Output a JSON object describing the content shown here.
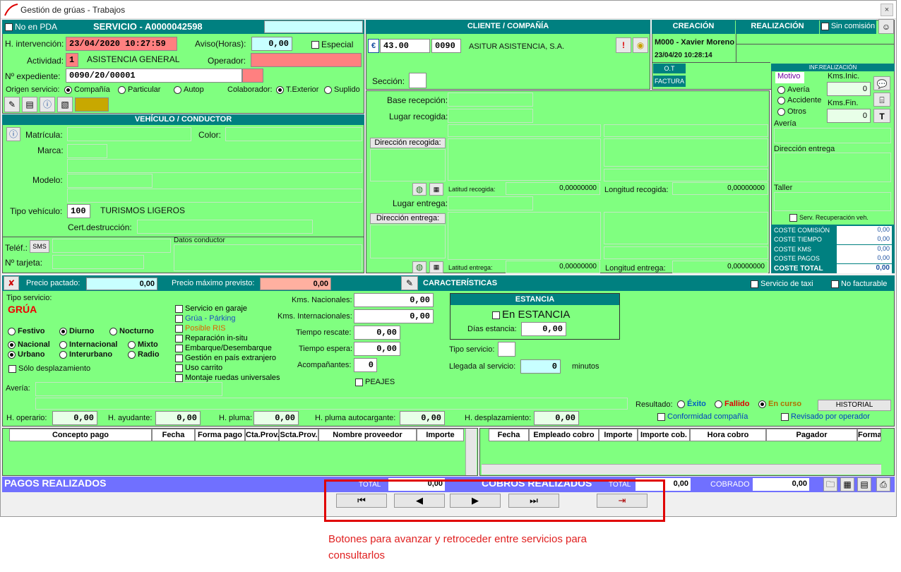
{
  "window": {
    "title": "Gestión de grúas - Trabajos",
    "close": "×"
  },
  "servicio": {
    "no_pda": "No en PDA",
    "title": "SERVICIO - A0000042598",
    "h_intervencion_label": "H. intervención:",
    "h_intervencion": "23/04/2020 10:27:59",
    "aviso_label": "Aviso(Horas):",
    "aviso": "0,00",
    "especial": "Especial",
    "actividad_label": "Actividad:",
    "actividad_code": "1",
    "actividad": "ASISTENCIA GENERAL",
    "operador_label": "Operador:",
    "expediente_label": "Nº expediente:",
    "expediente": "0090/20/00001",
    "origen_label": "Origen servicio:",
    "origen_opts": [
      "Compañía",
      "Particular",
      "Autop"
    ],
    "colaborador_label": "Colaborador:",
    "colab_opts": [
      "T.Exterior",
      "Suplido"
    ]
  },
  "vehiculo": {
    "title": "VEHÍCULO / CONDUCTOR",
    "matricula": "Matrícula:",
    "color": "Color:",
    "marca": "Marca:",
    "modelo": "Modelo:",
    "tipo_label": "Tipo vehículo:",
    "tipo_code": "100",
    "tipo": "TURISMOS LIGEROS",
    "cert": "Cert.destrucción:",
    "telef": "Teléf.:",
    "sms": "SMS",
    "tarjeta": "Nº tarjeta:",
    "datos": "Datos conductor"
  },
  "cliente": {
    "title": "CLIENTE / COMPAÑÍA",
    "euro": "€",
    "importe": "43.00",
    "code": "0090",
    "nombre": "ASITUR ASISTENCIA, S.A.",
    "seccion": "Sección:",
    "base": "Base recepción:",
    "lugar_recogida": "Lugar recogida:",
    "dir_recogida": "Dirección recogida:",
    "lat_recogida_label": "Latitud recogida:",
    "lat_recogida": "0,00000000",
    "lon_recogida_label": "Longitud recogida:",
    "lon_recogida": "0,00000000",
    "lugar_entrega": "Lugar entrega:",
    "dir_entrega": "Dirección entrega:",
    "lat_entrega_label": "Latitud entrega:",
    "lat_entrega": "0,00000000",
    "lon_entrega_label": "Longitud entrega:",
    "lon_entrega": "0,00000000"
  },
  "creacion": {
    "title": "CREACIÓN",
    "realizacion": "REALIZACIÓN",
    "sin_comision": "Sin comisión",
    "user": "M000 - Xavier Moreno",
    "date": "23/04/20 10:28:14",
    "ot": "O.T",
    "factura": "FACTURA"
  },
  "inf": {
    "title": "INF.REALIZACIÓN",
    "motivo": "Motivo",
    "motivos": [
      "Avería",
      "Accidente",
      "Otros"
    ],
    "kms_ini": "Kms.Inic.",
    "kms_ini_val": "0",
    "kms_fin": "Kms.Fin.",
    "kms_fin_val": "0",
    "t": "T",
    "averia": "Avería",
    "dir_entrega": "Dirección entrega",
    "taller": "Taller",
    "serv_rec": "Serv. Recuperación veh.",
    "costes": [
      {
        "l": "COSTE COMISIÓN",
        "v": "0,00"
      },
      {
        "l": "COSTE TIEMPO",
        "v": "0,00"
      },
      {
        "l": "COSTE KMS",
        "v": "0,00"
      },
      {
        "l": "COSTE PAGOS",
        "v": "0,00"
      }
    ],
    "total_l": "COSTE TOTAL",
    "total_v": "0,00"
  },
  "carac": {
    "precio_pactado": "Precio pactado:",
    "precio_pactado_v": "0,00",
    "precio_max": "Precio máximo previsto:",
    "precio_max_v": "0,00",
    "title": "CARACTERÍSTICAS",
    "taxi": "Servicio de taxi",
    "no_fact": "No facturable",
    "tipo_label": "Tipo servicio:",
    "tipo": "GRÚA",
    "r1": [
      "Festivo",
      "Diurno",
      "Nocturno"
    ],
    "r2": [
      "Nacional",
      "Internacional",
      "Mixto"
    ],
    "r3": [
      "Urbano",
      "Interurbano",
      "Radio"
    ],
    "solo": "Sólo desplazamiento",
    "checks": [
      "Servicio en garaje",
      "Grúa - Párking",
      "Posible RIS",
      "Reparación in-situ",
      "Embarque/Desembarque",
      "Gestión en país extranjero",
      "Uso carrito",
      "Montaje ruedas universales"
    ],
    "kms_nac": "Kms. Nacionales:",
    "kms_int": "Kms. Internacionales:",
    "t_rescate": "Tiempo rescate:",
    "t_espera": "Tiempo espera:",
    "acomp": "Acompañantes:",
    "acomp_v": "0",
    "peajes": "PEAJES",
    "zero": "0,00",
    "estancia": "ESTANCIA",
    "en_estancia": "En ESTANCIA",
    "dias": "Días estancia:",
    "tipo_serv2": "Tipo servicio:",
    "llegada": "Llegada al servicio:",
    "llegada_v": "0",
    "minutos": "minutos",
    "averia": "Avería:",
    "resultado": "Resultado:",
    "res": [
      "Éxito",
      "Fallido",
      "En curso"
    ],
    "historial": "HISTORIAL",
    "h_oper": "H. operario:",
    "h_ayud": "H. ayudante:",
    "h_pluma": "H. pluma:",
    "h_pluma_auto": "H. pluma autocargante:",
    "h_desp": "H. desplazamiento:",
    "conf": "Conformidad compañía",
    "revisado": "Revisado por operador"
  },
  "pagos": {
    "cols": [
      "Concepto pago",
      "Fecha",
      "Forma pago",
      "Cta.Prov.",
      "Scta.Prov.",
      "Nombre proveedor",
      "Importe"
    ],
    "title": "PAGOS REALIZADOS",
    "total": "TOTAL",
    "total_v": "0,00"
  },
  "cobros": {
    "cols": [
      "Fecha",
      "Empleado cobro",
      "Importe",
      "Importe cob.",
      "Hora cobro",
      "Pagador",
      "Forma"
    ],
    "title": "COBROS REALIZADOS",
    "total": "TOTAL",
    "total_v": "0,00",
    "cobrado": "COBRADO",
    "cobrado_v": "0,00"
  },
  "annotation": "Botones para avanzar y retroceder entre servicios para consultarlos"
}
